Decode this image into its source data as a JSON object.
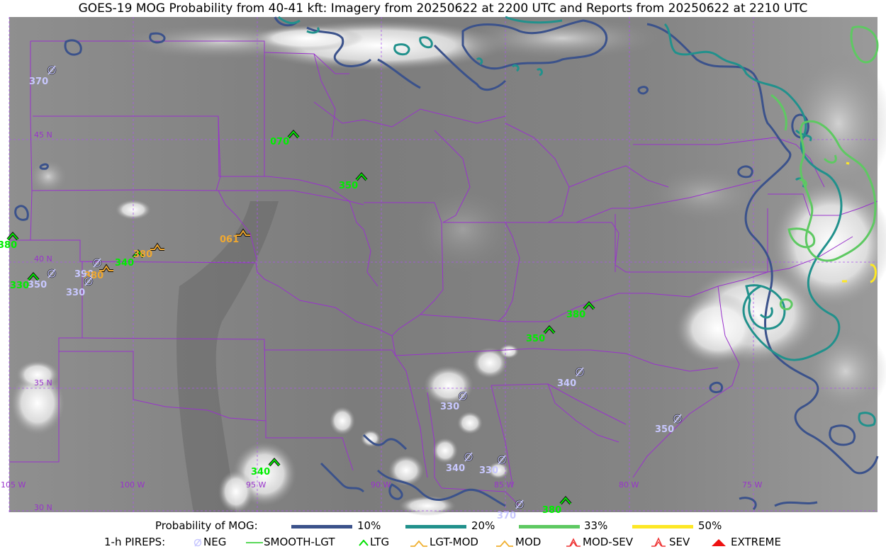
{
  "title": "GOES-19 MOG Probability from 40-41 kft: Imagery from 20250622 at 2200 UTC and Reports from 20250622 at 2210 UTC",
  "lat_labels": [
    "45 N",
    "40 N",
    "35 N",
    "30 N"
  ],
  "lon_labels": [
    "105 W",
    "100 W",
    "95 W",
    "90 W",
    "85 W",
    "80 W",
    "75 W"
  ],
  "reports": [
    {
      "type": "NEG",
      "alt": "370"
    },
    {
      "type": "LTG",
      "alt": "070"
    },
    {
      "type": "LTG",
      "alt": "350"
    },
    {
      "type": "MOD",
      "alt": "061"
    },
    {
      "type": "LTG",
      "alt": "380"
    },
    {
      "type": "LTG",
      "alt": "340"
    },
    {
      "type": "MOD",
      "alt": "380"
    },
    {
      "type": "NEG",
      "alt": "390"
    },
    {
      "type": "MOD",
      "alt": "380"
    },
    {
      "type": "NEG",
      "alt": "350"
    },
    {
      "type": "LTG",
      "alt": "330"
    },
    {
      "type": "NEG",
      "alt": "330"
    },
    {
      "type": "LTG",
      "alt": "380"
    },
    {
      "type": "LTG",
      "alt": "350"
    },
    {
      "type": "NEG",
      "alt": "340"
    },
    {
      "type": "NEG",
      "alt": "330"
    },
    {
      "type": "NEG",
      "alt": "350"
    },
    {
      "type": "LTG",
      "alt": "340"
    },
    {
      "type": "NEG",
      "alt": "340"
    },
    {
      "type": "NEG",
      "alt": "330"
    },
    {
      "type": "NEG",
      "alt": "370"
    },
    {
      "type": "LTG",
      "alt": "380"
    }
  ],
  "legend": {
    "prob_title": "Probability of MOG:",
    "prob_items": [
      {
        "label": "10%",
        "color": "#3b528b"
      },
      {
        "label": "20%",
        "color": "#21918c"
      },
      {
        "label": "33%",
        "color": "#5ec962"
      },
      {
        "label": "50%",
        "color": "#fde725"
      }
    ],
    "pirep_title": "1-h PIREPS:",
    "pirep_items": [
      {
        "label": "NEG",
        "color": "#c8c8ff"
      },
      {
        "label": "SMOOTH-LGT",
        "color": "#22cc22"
      },
      {
        "label": "LTG",
        "color": "#00e000"
      },
      {
        "label": "LGT-MOD",
        "color": "#f0b030"
      },
      {
        "label": "MOD",
        "color": "#f0b030"
      },
      {
        "label": "MOD-SEV",
        "color": "#ee3333"
      },
      {
        "label": "SEV",
        "color": "#ee3333"
      },
      {
        "label": "EXTREME",
        "color": "#ee1111"
      }
    ]
  },
  "colors": {
    "state_border": "#9933cc",
    "grid": "#aa55ee",
    "neg": "#c8c8ff",
    "ltg": "#00ee00",
    "mod": "#f0a830"
  }
}
